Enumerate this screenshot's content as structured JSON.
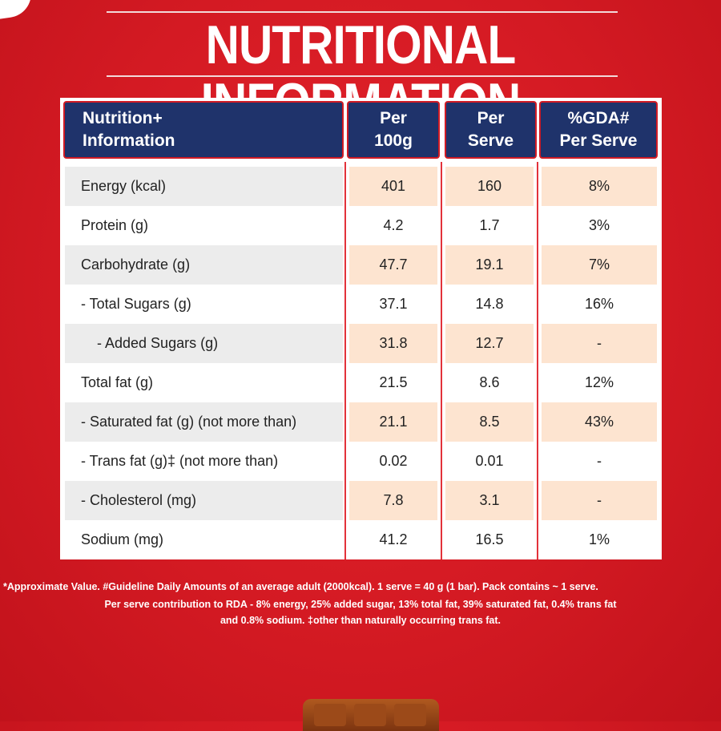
{
  "title": "NUTRITIONAL INFORMATION",
  "header": {
    "col1_line1": "Nutrition+",
    "col1_line2": "Information",
    "col2_line1": "Per",
    "col2_line2": "100g",
    "col3_line1": "Per",
    "col3_line2": "Serve",
    "col4_line1": "%GDA#",
    "col4_line2": "Per Serve"
  },
  "rows": [
    {
      "label": "Energy (kcal)",
      "per100g": "401",
      "perServe": "160",
      "gda": "8%"
    },
    {
      "label": "Protein (g)",
      "per100g": "4.2",
      "perServe": "1.7",
      "gda": "3%"
    },
    {
      "label": "Carbohydrate (g)",
      "per100g": "47.7",
      "perServe": "19.1",
      "gda": "7%"
    },
    {
      "label": "- Total Sugars (g)",
      "per100g": "37.1",
      "perServe": "14.8",
      "gda": "16%"
    },
    {
      "label": "- Added Sugars (g)",
      "per100g": "31.8",
      "perServe": "12.7",
      "gda": "-"
    },
    {
      "label": "Total fat (g)",
      "per100g": "21.5",
      "perServe": "8.6",
      "gda": "12%"
    },
    {
      "label": "- Saturated fat (g) (not more than)",
      "per100g": "21.1",
      "perServe": "8.5",
      "gda": "43%"
    },
    {
      "label": "- Trans fat (g)‡ (not more than)",
      "per100g": "0.02",
      "perServe": "0.01",
      "gda": "-"
    },
    {
      "label": "- Cholesterol (mg)",
      "per100g": "7.8",
      "perServe": "3.1",
      "gda": "-"
    },
    {
      "label": "Sodium (mg)",
      "per100g": "41.2",
      "perServe": "16.5",
      "gda": "1%"
    }
  ],
  "footnote": {
    "line1": "*Approximate Value. #Guideline Daily Amounts of an average adult (2000kcal). 1 serve = 40 g (1 bar). Pack contains ~ 1 serve.",
    "line2": "Per serve contribution to RDA - 8% energy, 25% added sugar, 13% total fat, 39% saturated fat, 0.4% trans fat",
    "line3": "and 0.8% sodium. ‡other than naturally occurring trans fat."
  },
  "colors": {
    "background": "#d41a23",
    "header_fill": "#1f336b",
    "shaded_label": "#ececec",
    "shaded_value": "#fde4d0"
  }
}
